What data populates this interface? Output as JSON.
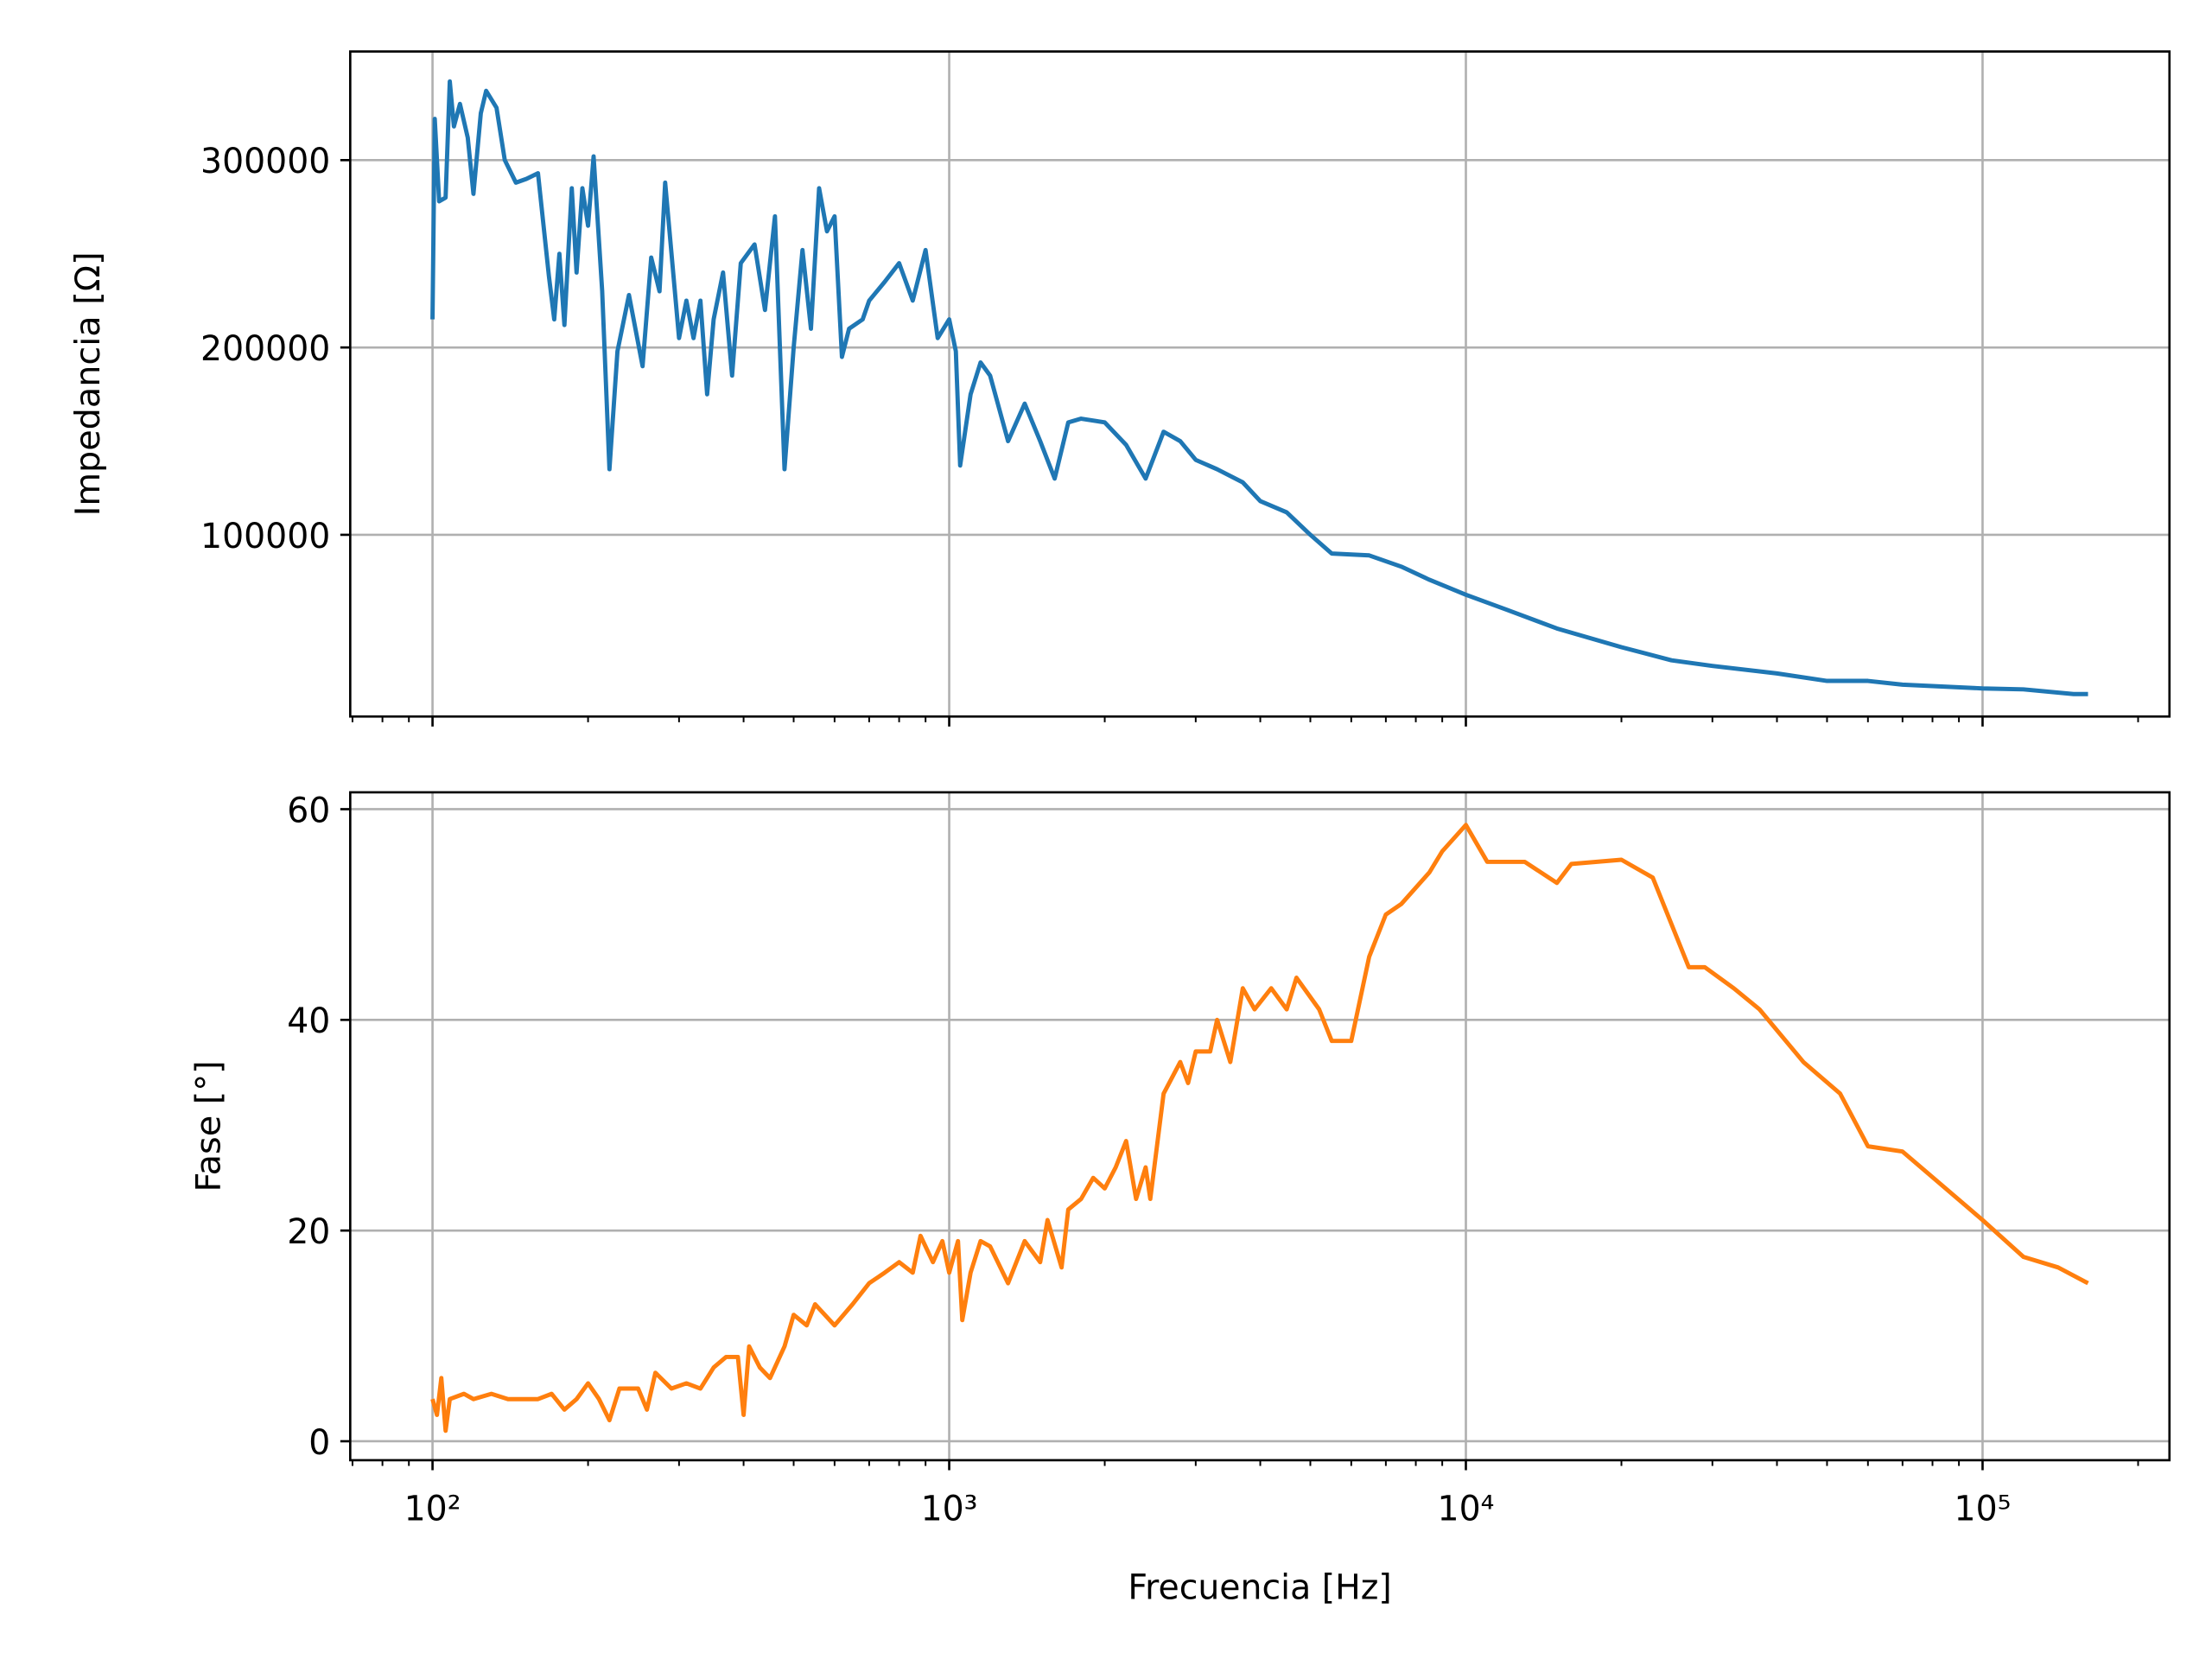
{
  "chart_data": [
    {
      "type": "line",
      "ylabel": "Impedancia [Ω]",
      "grid": true,
      "xscale": "log",
      "xlim": [
        69.3,
        230000
      ],
      "ylim": [
        3000,
        358000
      ],
      "xticks": [
        100,
        1000,
        10000,
        100000
      ],
      "xminorticks": [
        70,
        80,
        90,
        200,
        300,
        400,
        500,
        600,
        700,
        800,
        900,
        2000,
        3000,
        4000,
        5000,
        6000,
        7000,
        8000,
        9000,
        20000,
        30000,
        40000,
        50000,
        60000,
        70000,
        80000,
        90000,
        200000
      ],
      "yticks": [
        100000,
        200000,
        300000
      ],
      "series": [
        {
          "color": "#1f77b4",
          "x": [
            100,
            101,
            103,
            106,
            108,
            110,
            113,
            117,
            120,
            124,
            127,
            133,
            138,
            145,
            152,
            160,
            168,
            172,
            176,
            180,
            186,
            190,
            195,
            200,
            205,
            213,
            220,
            228,
            240,
            255,
            265,
            275,
            282,
            300,
            310,
            320,
            330,
            340,
            350,
            365,
            380,
            395,
            420,
            440,
            460,
            480,
            500,
            520,
            540,
            560,
            580,
            600,
            620,
            640,
            680,
            700,
            750,
            800,
            850,
            900,
            950,
            1000,
            1030,
            1050,
            1100,
            1150,
            1200,
            1300,
            1400,
            1500,
            1600,
            1700,
            1800,
            2000,
            2200,
            2400,
            2600,
            2800,
            3000,
            3300,
            3700,
            4000,
            4500,
            5000,
            5500,
            6500,
            7500,
            8500,
            10000,
            12000,
            15000,
            20000,
            25000,
            30000,
            40000,
            50000,
            60000,
            70000,
            100000,
            120000,
            150000,
            160000
          ],
          "values": [
            215000,
            322000,
            278000,
            280000,
            342000,
            318000,
            330000,
            312000,
            282000,
            325000,
            337000,
            328000,
            300000,
            288000,
            290000,
            293000,
            238000,
            215000,
            250000,
            212000,
            285000,
            240000,
            285000,
            265000,
            302000,
            230000,
            135000,
            198000,
            228000,
            190000,
            248000,
            230000,
            288000,
            205000,
            225000,
            205000,
            225000,
            175000,
            215000,
            240000,
            185000,
            245000,
            255000,
            220000,
            270000,
            135000,
            200000,
            252000,
            210000,
            285000,
            262000,
            270000,
            195000,
            210000,
            215000,
            225000,
            235000,
            245000,
            225000,
            252000,
            205000,
            215000,
            198000,
            137000,
            175000,
            192000,
            185000,
            150000,
            170000,
            150000,
            130000,
            160000,
            162000,
            160000,
            148000,
            130000,
            155000,
            150000,
            140000,
            135000,
            128000,
            118000,
            112000,
            100000,
            90000,
            89000,
            83000,
            76000,
            68000,
            60000,
            50000,
            40000,
            33000,
            30000,
            26000,
            22000,
            22000,
            20000,
            18000,
            17500,
            15000,
            15000
          ]
        }
      ]
    },
    {
      "type": "line",
      "ylabel": "Fase [°]",
      "xlabel": "Frecuencia [Hz]",
      "grid": true,
      "xscale": "log",
      "xlim": [
        69.3,
        230000
      ],
      "ylim": [
        -1.8,
        61.6
      ],
      "xticks": [
        {
          "value": 100,
          "label": "10²"
        },
        {
          "value": 1000,
          "label": "10³"
        },
        {
          "value": 10000,
          "label": "10⁴"
        },
        {
          "value": 100000,
          "label": "10⁵"
        }
      ],
      "xminorticks": [
        70,
        80,
        90,
        200,
        300,
        400,
        500,
        600,
        700,
        800,
        900,
        2000,
        3000,
        4000,
        5000,
        6000,
        7000,
        8000,
        9000,
        20000,
        30000,
        40000,
        50000,
        60000,
        70000,
        80000,
        90000,
        200000
      ],
      "yticks": [
        0,
        20,
        40,
        60
      ],
      "series": [
        {
          "color": "#ff7f0e",
          "x": [
            100,
            102,
            104,
            106,
            108,
            115,
            120,
            130,
            140,
            160,
            170,
            180,
            190,
            200,
            210,
            220,
            230,
            250,
            260,
            270,
            290,
            310,
            330,
            350,
            370,
            390,
            400,
            410,
            430,
            450,
            480,
            500,
            530,
            550,
            600,
            650,
            700,
            750,
            800,
            850,
            880,
            930,
            970,
            1000,
            1040,
            1060,
            1100,
            1150,
            1200,
            1300,
            1400,
            1500,
            1550,
            1650,
            1700,
            1800,
            1900,
            2000,
            2100,
            2200,
            2300,
            2400,
            2450,
            2600,
            2800,
            2900,
            3000,
            3200,
            3300,
            3500,
            3700,
            3900,
            4200,
            4500,
            4700,
            5200,
            5500,
            6000,
            6500,
            7000,
            7500,
            8500,
            9000,
            10000,
            11000,
            13000,
            15000,
            16000,
            20000,
            23000,
            27000,
            29000,
            33000,
            37000,
            45000,
            53000,
            60000,
            70000,
            100000,
            120000,
            140000,
            160000
          ],
          "values": [
            4,
            2.5,
            6,
            1,
            4,
            4.5,
            4,
            4.5,
            4,
            4,
            4.5,
            3,
            4,
            5.5,
            4,
            2,
            5,
            5,
            3,
            6.5,
            5,
            5.5,
            5,
            7,
            8,
            8,
            2.5,
            9,
            7,
            6,
            9,
            12,
            11,
            13,
            11,
            13,
            15,
            16,
            17,
            16,
            19.5,
            17,
            19,
            16,
            19,
            11.5,
            16,
            19,
            18.5,
            15,
            19,
            17,
            21,
            16.5,
            22,
            23,
            25,
            24,
            26,
            28.5,
            23,
            26,
            23,
            33,
            36,
            34,
            37,
            37,
            40,
            36,
            43,
            41,
            43,
            41,
            44,
            41,
            38,
            38,
            46,
            50,
            51,
            54,
            56,
            58.5,
            55,
            55,
            53,
            54.8,
            55.2,
            53.5,
            45,
            45,
            43,
            41,
            36,
            33,
            28,
            27.5,
            21,
            17.5,
            16.5,
            15
          ]
        }
      ]
    }
  ]
}
